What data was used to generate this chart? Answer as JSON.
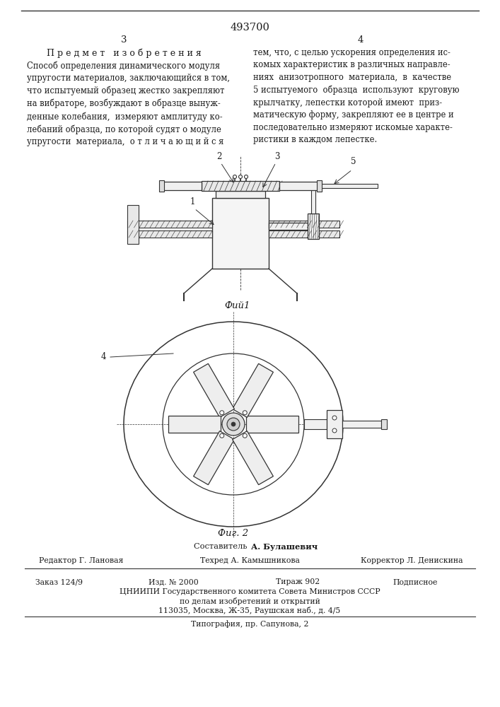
{
  "patent_number": "493700",
  "page_left": "3",
  "page_right": "4",
  "title_left": "П р е д м е т   и з о б р е т е н и я",
  "left_col_text": "Способ определения динамического модуля\nупругости материалов, заключающийся в том,\nчто испытуемый образец жестко закрепляют\nна вибраторе, возбуждают в образце вынуж-\nденные колебания,  измеряют амплитуду ко-\nлебаний образца, по которой судят о модуле\nупругости  материала,  о т л и ч а ю щ и й с я",
  "right_col_text": "тем, что, с целью ускорения определения ис-\nкомых характеристик в различных направле-\nниях  анизотропного  материала,  в  качестве\n5 испытуемого  образца  используют  круговую\nкрылчатку, лепестки которой имеют  приз-\nматическую форму, закрепляют ее в центре и\nпоследовательно измеряют искомые характе-\nристики в каждом лепестке.",
  "fig1_caption": "Фий1",
  "fig2_caption": "Фиг. 2",
  "compositor_label": "Составитель",
  "compositor_name": "А. Булашевич",
  "editor_label": "Редактор",
  "editor_name": "Г. Лановая",
  "techred_label": "Техред",
  "techred_name": "А. Камышникова",
  "corrector_label": "Корректор",
  "corrector_name": "Л. Денискина",
  "order": "Заказ 124/9",
  "izdanie": "Изд. № 2000",
  "tirazh": "Тираж 902",
  "podpisnoe": "Подписное",
  "cniipи_line": "ЦНИИПИ Государственного комитета Совета Министров СССР",
  "po_delam": "по делам изобретений и открытий",
  "address": "113035, Москва, Ж-35, Раушская наб., д. 4/5",
  "typography": "Типография, пр. Сапунова, 2",
  "bg_color": "#ffffff",
  "text_color": "#1a1a1a",
  "line_color": "#333333"
}
